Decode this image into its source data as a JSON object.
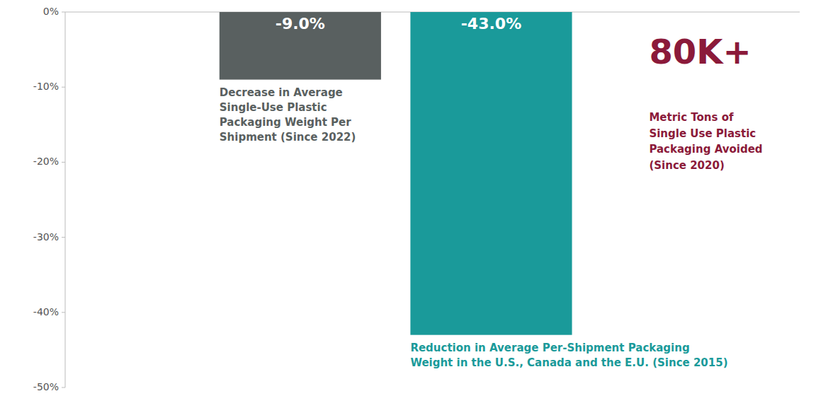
{
  "chart_data": {
    "type": "bar",
    "categories": [
      null,
      null
    ],
    "values": [
      -9.0,
      -43.0
    ],
    "value_labels": [
      "-9.0%",
      "-43.0%"
    ],
    "data_labels": true,
    "colors": [
      "#596060",
      "#1a9a9a"
    ],
    "ylim": [
      -50,
      0
    ],
    "yticks": [
      {
        "value": 0,
        "label": "0%"
      },
      {
        "value": -10,
        "label": "-10%"
      },
      {
        "value": -20,
        "label": "-20%"
      },
      {
        "value": -30,
        "label": "-30%"
      },
      {
        "value": -40,
        "label": "-40%"
      },
      {
        "value": -50,
        "label": "-50%"
      }
    ],
    "grid": false,
    "annotations": [
      {
        "text": "Decrease in Average\nSingle-Use Plastic\nPackaging Weight Per\nShipment (Since 2022)",
        "color": "#596060"
      },
      {
        "text": "Reduction in Average Per-Shipment Packaging\nWeight in the U.S., Canada and the E.U. (Since 2015)",
        "color": "#1a9a9a"
      },
      {
        "text": "80K+",
        "color": "#8b1a3a"
      },
      {
        "text": "Metric Tons of\nSingle Use Plastic\nPackaging Avoided\n(Since 2020)",
        "color": "#8b1a3a"
      }
    ]
  }
}
